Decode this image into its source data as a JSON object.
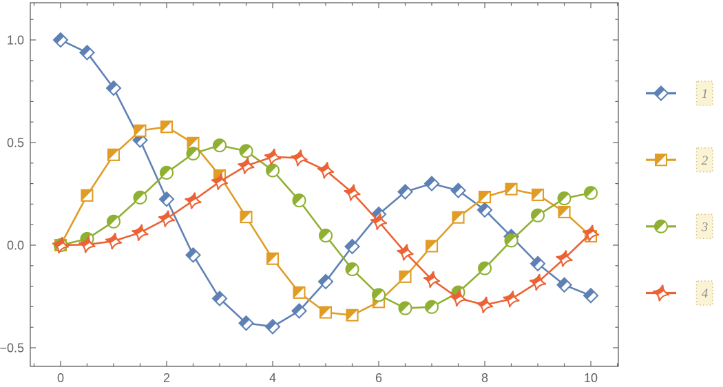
{
  "figure": {
    "background": "#ffffff",
    "frame_color": "#616161",
    "tick_label_color": "#636363"
  },
  "chart_data": {
    "type": "line",
    "title": "",
    "xlabel": "",
    "ylabel": "",
    "grid": false,
    "frame": true,
    "legend_position": "right-outside",
    "xlim": [
      -0.571,
      10.519
    ],
    "ylim": [
      -0.5906,
      1.1812
    ],
    "x_ticks": {
      "majors": [
        0,
        2,
        4,
        6,
        8,
        10
      ],
      "labels": [
        "0",
        "2",
        "4",
        "6",
        "8",
        "10"
      ],
      "minor_step": 0.5
    },
    "y_ticks": {
      "majors": [
        -0.5,
        0,
        0.5,
        1
      ],
      "labels": [
        "−0.5",
        "0.0",
        "0.5",
        "1.0"
      ],
      "minor_step": 0.1
    },
    "x": [
      0,
      0.5,
      1,
      1.5,
      2,
      2.5,
      3,
      3.5,
      4,
      4.5,
      5,
      5.5,
      6,
      6.5,
      7,
      7.5,
      8,
      8.5,
      9,
      9.5,
      10
    ],
    "series": [
      {
        "name": "1",
        "marker": "diamond",
        "color": "#5E81B5",
        "values": [
          1.0,
          0.9385,
          0.7652,
          0.5118,
          0.2239,
          -0.0484,
          -0.2601,
          -0.3801,
          -0.3971,
          -0.3205,
          -0.1776,
          -0.0068,
          0.1506,
          0.2601,
          0.3001,
          0.2663,
          0.1717,
          0.0419,
          -0.0903,
          -0.1939,
          -0.2459
        ]
      },
      {
        "name": "2",
        "marker": "square",
        "color": "#E09C24",
        "values": [
          0.0,
          0.2423,
          0.4401,
          0.5579,
          0.5767,
          0.4971,
          0.3391,
          0.1374,
          -0.066,
          -0.2311,
          -0.3276,
          -0.3414,
          -0.2767,
          -0.1538,
          -0.0047,
          0.1352,
          0.2346,
          0.2731,
          0.2453,
          0.1613,
          0.0435
        ]
      },
      {
        "name": "3",
        "marker": "circle",
        "color": "#8FB032",
        "values": [
          0.0,
          0.0306,
          0.1149,
          0.2321,
          0.3528,
          0.4461,
          0.4861,
          0.4586,
          0.3641,
          0.2178,
          0.0466,
          -0.1173,
          -0.2429,
          -0.3074,
          -0.3014,
          -0.2303,
          -0.113,
          0.0223,
          0.1448,
          0.2279,
          0.2546
        ]
      },
      {
        "name": "4",
        "marker": "star4",
        "color": "#EB6235",
        "values": [
          0.0,
          0.0026,
          0.0196,
          0.061,
          0.1289,
          0.2166,
          0.3091,
          0.3868,
          0.4302,
          0.4247,
          0.3648,
          0.2561,
          0.1148,
          -0.0353,
          -0.1676,
          -0.2583,
          -0.2911,
          -0.2626,
          -0.1809,
          -0.0653,
          0.0584
        ]
      }
    ]
  },
  "legend": {
    "labels": [
      "1",
      "2",
      "3",
      "4"
    ],
    "chip_background": "#FBF4D4",
    "chip_border": "#D6C088",
    "text_color": "#8a8a8a"
  }
}
